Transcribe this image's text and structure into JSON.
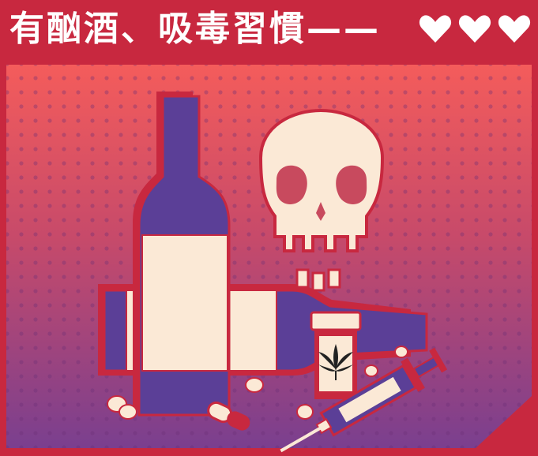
{
  "header": {
    "title": "有酗酒、吸毒習慣——",
    "hearts": [
      "heart-icon",
      "heart-icon",
      "heart-icon"
    ]
  },
  "colors": {
    "frame": "#c8283f",
    "bg_top": "#f15a5a",
    "bg_bottom": "#7d3f8e",
    "bottle": "#5b3f97",
    "label": "#fbe9d6",
    "skull": "#fbe9d6",
    "outline": "#c8283f",
    "heart": "#ffffff"
  }
}
